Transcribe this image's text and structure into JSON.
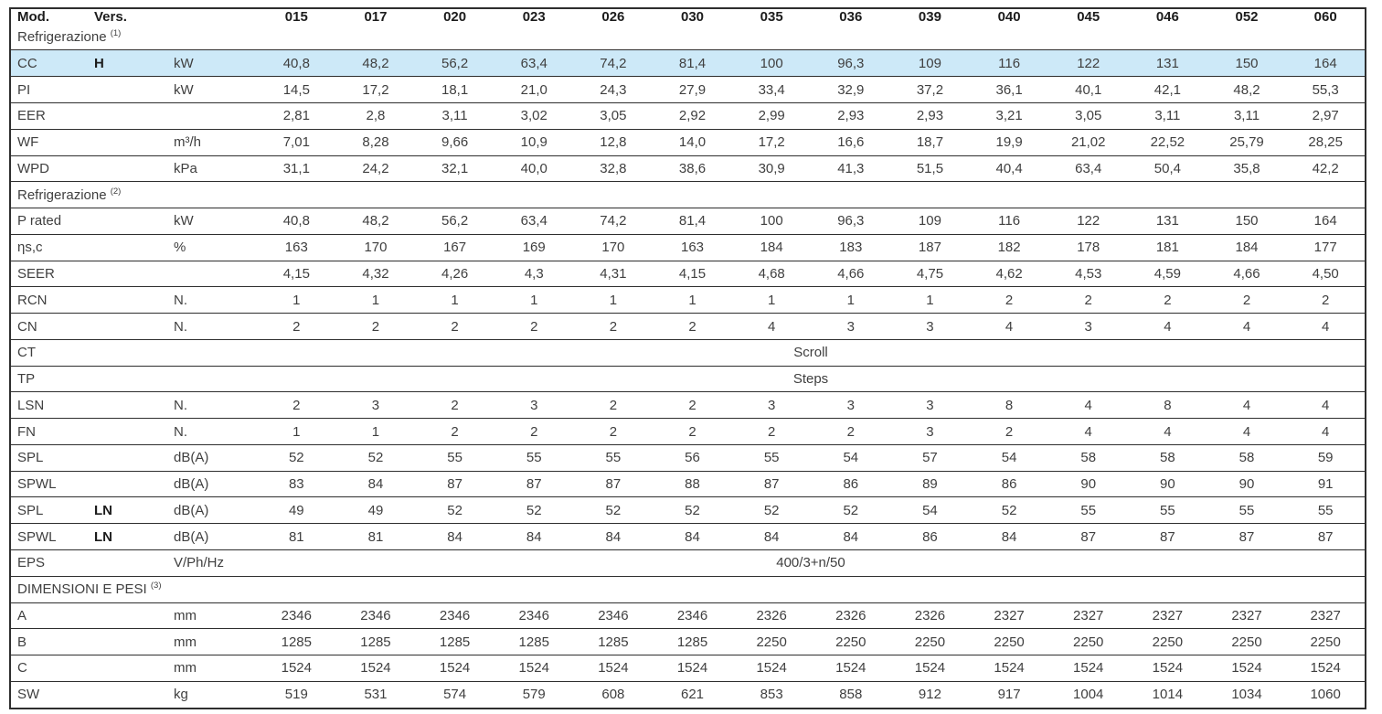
{
  "header": {
    "col_mod": "Mod.",
    "col_vers": "Vers.",
    "col_unit": "",
    "models": [
      "015",
      "017",
      "020",
      "023",
      "026",
      "030",
      "035",
      "036",
      "039",
      "040",
      "045",
      "046",
      "052",
      "060"
    ]
  },
  "accent_color": "#cde9f8",
  "rows": [
    {
      "type": "section",
      "label": "Refrigerazione",
      "sup": "(1)"
    },
    {
      "type": "data",
      "label": "CC",
      "vers": "H",
      "unit": "kW",
      "highlight": true,
      "values": [
        "40,8",
        "48,2",
        "56,2",
        "63,4",
        "74,2",
        "81,4",
        "100",
        "96,3",
        "109",
        "116",
        "122",
        "131",
        "150",
        "164"
      ]
    },
    {
      "type": "data",
      "label": "PI",
      "vers": "",
      "unit": "kW",
      "values": [
        "14,5",
        "17,2",
        "18,1",
        "21,0",
        "24,3",
        "27,9",
        "33,4",
        "32,9",
        "37,2",
        "36,1",
        "40,1",
        "42,1",
        "48,2",
        "55,3"
      ]
    },
    {
      "type": "data",
      "label": "EER",
      "vers": "",
      "unit": "",
      "values": [
        "2,81",
        "2,8",
        "3,11",
        "3,02",
        "3,05",
        "2,92",
        "2,99",
        "2,93",
        "2,93",
        "3,21",
        "3,05",
        "3,11",
        "3,11",
        "2,97"
      ]
    },
    {
      "type": "data",
      "label": "WF",
      "vers": "",
      "unit": "m³/h",
      "values": [
        "7,01",
        "8,28",
        "9,66",
        "10,9",
        "12,8",
        "14,0",
        "17,2",
        "16,6",
        "18,7",
        "19,9",
        "21,02",
        "22,52",
        "25,79",
        "28,25"
      ]
    },
    {
      "type": "data",
      "label": "WPD",
      "vers": "",
      "unit": "kPa",
      "values": [
        "31,1",
        "24,2",
        "32,1",
        "40,0",
        "32,8",
        "38,6",
        "30,9",
        "41,3",
        "51,5",
        "40,4",
        "63,4",
        "50,4",
        "35,8",
        "42,2"
      ]
    },
    {
      "type": "section",
      "label": "Refrigerazione",
      "sup": "(2)"
    },
    {
      "type": "data",
      "label": "P rated",
      "vers": "",
      "unit": "kW",
      "values": [
        "40,8",
        "48,2",
        "56,2",
        "63,4",
        "74,2",
        "81,4",
        "100",
        "96,3",
        "109",
        "116",
        "122",
        "131",
        "150",
        "164"
      ]
    },
    {
      "type": "data",
      "label": "ηs,c",
      "vers": "",
      "unit": "%",
      "values": [
        "163",
        "170",
        "167",
        "169",
        "170",
        "163",
        "184",
        "183",
        "187",
        "182",
        "178",
        "181",
        "184",
        "177"
      ]
    },
    {
      "type": "data",
      "label": "SEER",
      "vers": "",
      "unit": "",
      "values": [
        "4,15",
        "4,32",
        "4,26",
        "4,3",
        "4,31",
        "4,15",
        "4,68",
        "4,66",
        "4,75",
        "4,62",
        "4,53",
        "4,59",
        "4,66",
        "4,50"
      ]
    },
    {
      "type": "data",
      "label": "RCN",
      "vers": "",
      "unit": "N.",
      "values": [
        "1",
        "1",
        "1",
        "1",
        "1",
        "1",
        "1",
        "1",
        "1",
        "2",
        "2",
        "2",
        "2",
        "2"
      ]
    },
    {
      "type": "data",
      "label": "CN",
      "vers": "",
      "unit": "N.",
      "values": [
        "2",
        "2",
        "2",
        "2",
        "2",
        "2",
        "4",
        "3",
        "3",
        "4",
        "3",
        "4",
        "4",
        "4"
      ]
    },
    {
      "type": "span",
      "label": "CT",
      "vers": "",
      "unit": "",
      "value": "Scroll"
    },
    {
      "type": "span",
      "label": "TP",
      "vers": "",
      "unit": "",
      "value": "Steps"
    },
    {
      "type": "data",
      "label": "LSN",
      "vers": "",
      "unit": "N.",
      "values": [
        "2",
        "3",
        "2",
        "3",
        "2",
        "2",
        "3",
        "3",
        "3",
        "8",
        "4",
        "8",
        "4",
        "4"
      ]
    },
    {
      "type": "data",
      "label": "FN",
      "vers": "",
      "unit": "N.",
      "values": [
        "1",
        "1",
        "2",
        "2",
        "2",
        "2",
        "2",
        "2",
        "3",
        "2",
        "4",
        "4",
        "4",
        "4"
      ]
    },
    {
      "type": "data",
      "label": "SPL",
      "vers": "",
      "unit": "dB(A)",
      "values": [
        "52",
        "52",
        "55",
        "55",
        "55",
        "56",
        "55",
        "54",
        "57",
        "54",
        "58",
        "58",
        "58",
        "59"
      ]
    },
    {
      "type": "data",
      "label": "SPWL",
      "vers": "",
      "unit": "dB(A)",
      "values": [
        "83",
        "84",
        "87",
        "87",
        "87",
        "88",
        "87",
        "86",
        "89",
        "86",
        "90",
        "90",
        "90",
        "91"
      ]
    },
    {
      "type": "data",
      "label": "SPL",
      "vers": "LN",
      "unit": "dB(A)",
      "values": [
        "49",
        "49",
        "52",
        "52",
        "52",
        "52",
        "52",
        "52",
        "54",
        "52",
        "55",
        "55",
        "55",
        "55"
      ]
    },
    {
      "type": "data",
      "label": "SPWL",
      "vers": "LN",
      "unit": "dB(A)",
      "values": [
        "81",
        "81",
        "84",
        "84",
        "84",
        "84",
        "84",
        "84",
        "86",
        "84",
        "87",
        "87",
        "87",
        "87"
      ]
    },
    {
      "type": "span",
      "label": "EPS",
      "vers": "",
      "unit": "V/Ph/Hz",
      "value": "400/3+n/50"
    },
    {
      "type": "section",
      "label": "DIMENSIONI E PESI",
      "sup": "(3)"
    },
    {
      "type": "data",
      "label": "A",
      "vers": "",
      "unit": "mm",
      "values": [
        "2346",
        "2346",
        "2346",
        "2346",
        "2346",
        "2346",
        "2326",
        "2326",
        "2326",
        "2327",
        "2327",
        "2327",
        "2327",
        "2327"
      ]
    },
    {
      "type": "data",
      "label": "B",
      "vers": "",
      "unit": "mm",
      "values": [
        "1285",
        "1285",
        "1285",
        "1285",
        "1285",
        "1285",
        "2250",
        "2250",
        "2250",
        "2250",
        "2250",
        "2250",
        "2250",
        "2250"
      ]
    },
    {
      "type": "data",
      "label": "C",
      "vers": "",
      "unit": "mm",
      "values": [
        "1524",
        "1524",
        "1524",
        "1524",
        "1524",
        "1524",
        "1524",
        "1524",
        "1524",
        "1524",
        "1524",
        "1524",
        "1524",
        "1524"
      ]
    },
    {
      "type": "data",
      "label": "SW",
      "vers": "",
      "unit": "kg",
      "values": [
        "519",
        "531",
        "574",
        "579",
        "608",
        "621",
        "853",
        "858",
        "912",
        "917",
        "1004",
        "1014",
        "1034",
        "1060"
      ]
    }
  ]
}
